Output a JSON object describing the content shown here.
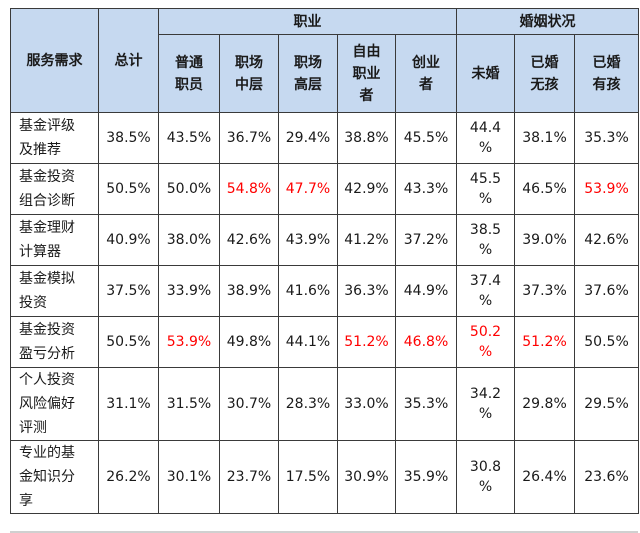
{
  "table": {
    "header": {
      "service": "服务需求",
      "total": "总计",
      "occupation_group": "职业",
      "marital_group": "婚姻状况",
      "occupation": [
        "普通\n职员",
        "职场\n中层",
        "职场\n高层",
        "自由\n职业\n者",
        "创业\n者"
      ],
      "marital": [
        "未婚",
        "已婚\n无孩",
        "已婚\n有孩"
      ]
    },
    "rows": [
      {
        "label": "基金评级\n及推荐",
        "cells": [
          "38.5%",
          "43.5%",
          "36.7%",
          "29.4%",
          "38.8%",
          "45.5%",
          "44.4\n%",
          "38.1%",
          "35.3%"
        ]
      },
      {
        "label": "基金投资\n组合诊断",
        "cells": [
          "50.5%",
          "50.0%",
          "54.8%",
          "47.7%",
          "42.9%",
          "43.3%",
          "45.5\n%",
          "46.5%",
          "53.9%"
        ]
      },
      {
        "label": "基金理财\n计算器",
        "cells": [
          "40.9%",
          "38.0%",
          "42.6%",
          "43.9%",
          "41.2%",
          "37.2%",
          "38.5\n%",
          "39.0%",
          "42.6%"
        ]
      },
      {
        "label": "基金模拟\n投资",
        "cells": [
          "37.5%",
          "33.9%",
          "38.9%",
          "41.6%",
          "36.3%",
          "44.9%",
          "37.4\n%",
          "37.3%",
          "37.6%"
        ]
      },
      {
        "label": "基金投资\n盈亏分析",
        "cells": [
          "50.5%",
          "53.9%",
          "49.8%",
          "44.1%",
          "51.2%",
          "46.8%",
          "50.2\n%",
          "51.2%",
          "50.5%"
        ]
      },
      {
        "label": "个人投资\n风险偏好\n评测",
        "cells": [
          "31.1%",
          "31.5%",
          "30.7%",
          "28.3%",
          "33.0%",
          "35.3%",
          "34.2\n%",
          "29.8%",
          "29.5%"
        ]
      },
      {
        "label": "专业的基\n金知识分\n享",
        "cells": [
          "26.2%",
          "30.1%",
          "23.7%",
          "17.5%",
          "30.9%",
          "35.9%",
          "30.8\n%",
          "26.4%",
          "23.6%"
        ]
      }
    ],
    "highlight_cells": [
      [
        1,
        2
      ],
      [
        1,
        3
      ],
      [
        1,
        8
      ],
      [
        4,
        1
      ],
      [
        4,
        4
      ],
      [
        4,
        5
      ],
      [
        4,
        6
      ],
      [
        4,
        7
      ]
    ],
    "colors": {
      "header_bg": "#c6d9f0",
      "highlight": "#ff0000",
      "border": "#3a3a3a"
    }
  }
}
